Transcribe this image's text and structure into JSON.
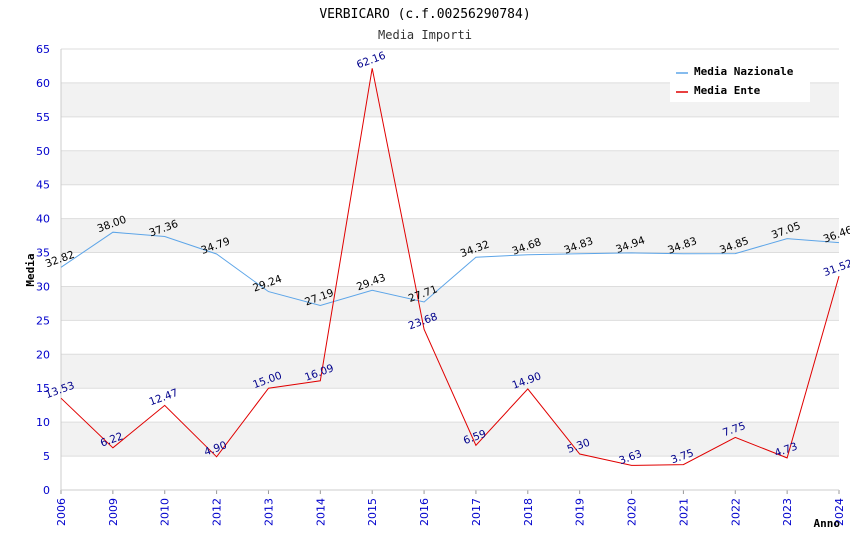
{
  "chart_data": {
    "type": "line",
    "title": "VERBICARO (c.f.00256290784)",
    "subtitle": "Media Importi",
    "xlabel": "Anno",
    "ylabel": "Media",
    "ylim": [
      0,
      65
    ],
    "yticks": [
      "0",
      "5",
      "10",
      "15",
      "20",
      "25",
      "30",
      "35",
      "40",
      "45",
      "50",
      "55",
      "60",
      "65"
    ],
    "categories": [
      "2006",
      "2009",
      "2010",
      "2012",
      "2013",
      "2014",
      "2015",
      "2016",
      "2017",
      "2018",
      "2019",
      "2020",
      "2021",
      "2022",
      "2023",
      "2024"
    ],
    "legend_position": "top-right",
    "series": [
      {
        "name": "Media Nazionale",
        "color": "#5da5e8",
        "values": [
          32.82,
          38.0,
          37.36,
          34.79,
          29.24,
          27.19,
          29.43,
          27.71,
          34.32,
          34.68,
          34.83,
          34.94,
          34.83,
          34.85,
          37.05,
          36.46
        ],
        "labels": [
          "32.82",
          "38.00",
          "37.36",
          "34.79",
          "29.24",
          "27.19",
          "29.43",
          "27.71",
          "34.32",
          "34.68",
          "34.83",
          "34.94",
          "34.83",
          "34.85",
          "37.05",
          "36.46"
        ]
      },
      {
        "name": "Media Ente",
        "color": "#e00000",
        "values": [
          13.53,
          6.22,
          12.47,
          4.9,
          15.0,
          16.09,
          62.16,
          23.68,
          6.59,
          14.9,
          5.3,
          3.63,
          3.75,
          7.75,
          4.73,
          31.52
        ],
        "labels": [
          "13.53",
          "6.22",
          "12.47",
          "4.90",
          "15.00",
          "16.09",
          "62.16",
          "23.68",
          "6.59",
          "14.90",
          "5.30",
          "3.63",
          "3.75",
          "7.75",
          "4.73",
          "31.52"
        ]
      }
    ]
  }
}
